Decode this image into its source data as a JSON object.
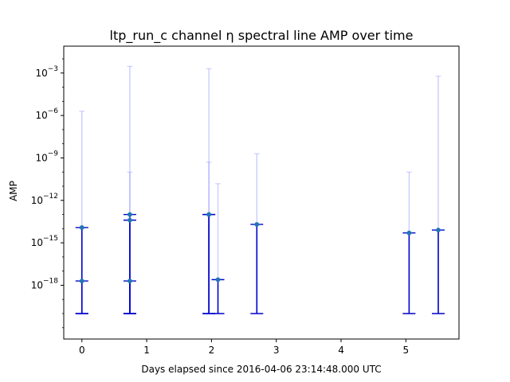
{
  "chart_data": {
    "type": "scatter",
    "title": "ltp_run_c channel η spectral line AMP over time",
    "xlabel": "Days elapsed since 2016-04-06 23:14:48.000 UTC",
    "ylabel": "AMP",
    "y_scale": "log",
    "xlim": [
      -0.28,
      5.82
    ],
    "ylog_lim": [
      -21.8,
      -1.1
    ],
    "x_ticks": [
      0,
      1,
      2,
      3,
      4,
      5
    ],
    "y_ticks": [
      {
        "exp": -18,
        "label": "−18"
      },
      {
        "exp": -15,
        "label": "−15"
      },
      {
        "exp": -12,
        "label": "−12"
      },
      {
        "exp": -9,
        "label": "−9"
      },
      {
        "exp": -6,
        "label": "−6"
      },
      {
        "exp": -3,
        "label": "−3"
      }
    ],
    "y_tick_base": "10",
    "grid": false,
    "legend": "none",
    "colors": {
      "point": "#1f77b4",
      "lower_error": "#0000cd",
      "upper_error": "#8888ff"
    },
    "points": [
      {
        "x": 0.0,
        "y": 1.2e-14,
        "lower": 1e-20,
        "upper": 2e-06
      },
      {
        "x": 0.0,
        "y": 2e-18,
        "lower": 1e-20,
        "upper": null
      },
      {
        "x": 0.74,
        "y": 1e-13,
        "lower": 1e-20,
        "upper": 0.003
      },
      {
        "x": 0.74,
        "y": 4e-14,
        "lower": 1e-20,
        "upper": 1e-10
      },
      {
        "x": 0.74,
        "y": 2e-18,
        "lower": 1e-20,
        "upper": null
      },
      {
        "x": 1.96,
        "y": 1e-13,
        "lower": 1e-20,
        "upper": 0.002
      },
      {
        "x": 1.96,
        "y": 1e-13,
        "lower": 1e-20,
        "upper": 5e-10
      },
      {
        "x": 2.1,
        "y": 2.5e-18,
        "lower": 1e-20,
        "upper": 1.5e-11
      },
      {
        "x": 2.7,
        "y": 2e-14,
        "lower": 1e-20,
        "upper": 2e-09
      },
      {
        "x": 5.05,
        "y": 5e-15,
        "lower": 1e-20,
        "upper": 1e-10
      },
      {
        "x": 5.5,
        "y": 8e-15,
        "lower": 1e-20,
        "upper": 0.0006
      }
    ]
  }
}
